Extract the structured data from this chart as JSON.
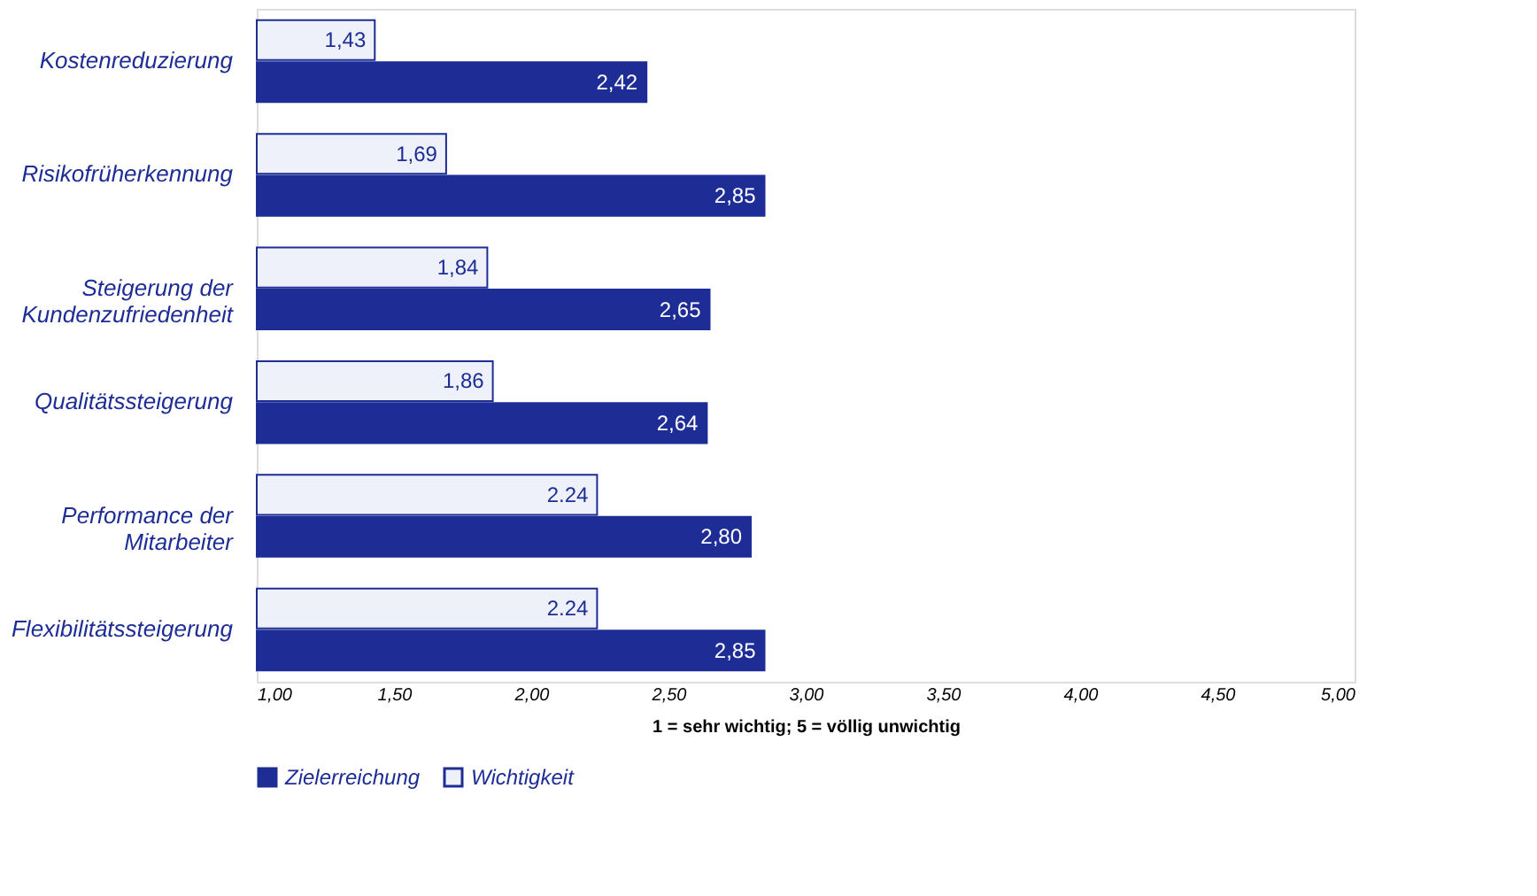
{
  "chart_data": {
    "type": "bar",
    "orientation": "horizontal",
    "xlabel": "1 = sehr wichtig; 5 = völlig unwichtig",
    "categories": [
      "Kostenreduzierung",
      "Risikofrüherkennung",
      "Steigerung der\nKundenzufriedenheit",
      "Qualitätssteigerung",
      "Performance der\nMitarbeiter",
      "Flexibilitätssteigerung"
    ],
    "series": [
      {
        "name": "Zielerreichung",
        "color": "#1e2d96",
        "values": [
          2.42,
          2.85,
          2.65,
          2.64,
          2.8,
          2.85
        ],
        "value_labels": [
          "2,42",
          "2,85",
          "2,65",
          "2,64",
          "2,80",
          "2,85"
        ]
      },
      {
        "name": "Wichtigkeit",
        "color": "#eef0fa",
        "values": [
          1.43,
          1.69,
          1.84,
          1.86,
          2.24,
          2.24
        ],
        "value_labels": [
          "1,43",
          "1,69",
          "1,84",
          "1,86",
          "2.24",
          "2.24"
        ]
      }
    ],
    "xlim": [
      1,
      5
    ],
    "xticks": [
      {
        "value": 1,
        "label": "1,00"
      },
      {
        "value": 1.5,
        "label": "1,50"
      },
      {
        "value": 2,
        "label": "2,00"
      },
      {
        "value": 2.5,
        "label": "2,50"
      },
      {
        "value": 3,
        "label": "3,00"
      },
      {
        "value": 3.5,
        "label": "3,50"
      },
      {
        "value": 4,
        "label": "4,00"
      },
      {
        "value": 4.5,
        "label": "4,50"
      },
      {
        "value": 5,
        "label": "5,00"
      }
    ],
    "grid": false,
    "legend": "bottom"
  }
}
